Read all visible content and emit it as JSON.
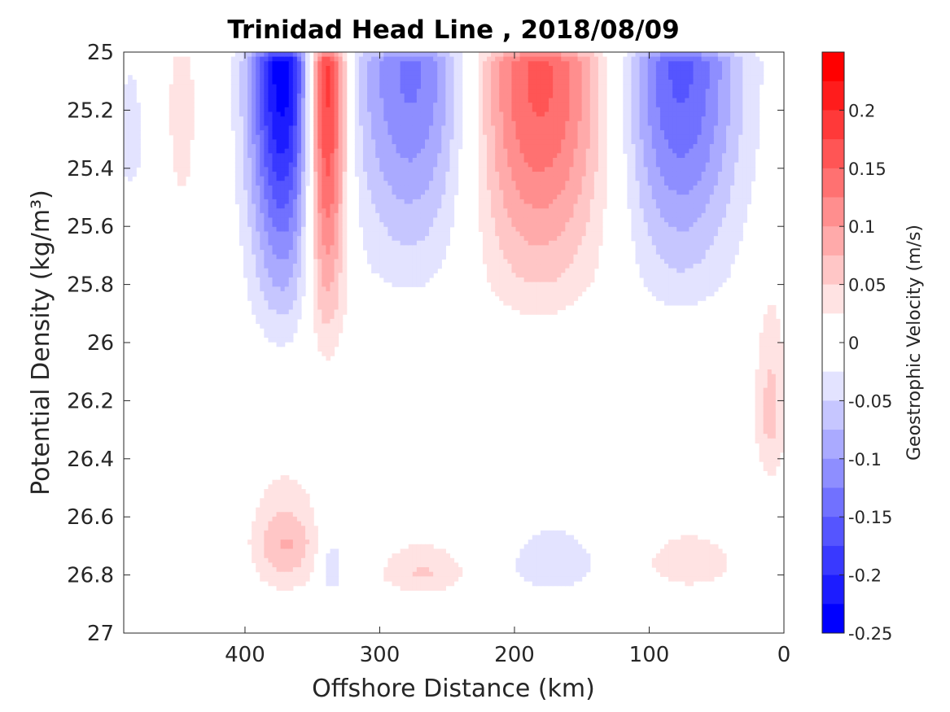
{
  "chart_data": {
    "type": "contour",
    "title": "Trinidad Head Line , 2018/08/09",
    "xlabel": "Offshore Distance (km)",
    "ylabel": "Potential Density (kg/m³)",
    "colorbar_label": "Geostrophic Velocity (m/s)",
    "x_reversed": true,
    "y_reversed": true,
    "xlim": [
      490,
      0
    ],
    "ylim": [
      25,
      27
    ],
    "x_ticks": [
      400,
      300,
      200,
      100,
      0
    ],
    "y_ticks": [
      25,
      25.2,
      25.4,
      25.6,
      25.8,
      26,
      26.2,
      26.4,
      26.6,
      26.8,
      27
    ],
    "colorbar_range": [
      -0.25,
      0.25
    ],
    "colorbar_step": 0.025,
    "colorbar_ticks": [
      0.2,
      0.15,
      0.1,
      0.05,
      0,
      -0.05,
      -0.1,
      -0.15,
      -0.2,
      -0.25
    ],
    "colors": {
      "negative_max": "#0000ff",
      "positive_max": "#ff0000",
      "zero": "#ffffff",
      "axis": "#262626"
    },
    "data_bottom": 26.9,
    "station_x": [
      480,
      470,
      460,
      450,
      440,
      430,
      420,
      410,
      400,
      390,
      380,
      370,
      360,
      350,
      340,
      330,
      320,
      310,
      300,
      290,
      280,
      270,
      260,
      250,
      240,
      230,
      220,
      210,
      200,
      190,
      180,
      170,
      160,
      150,
      140,
      130,
      120,
      110,
      100,
      90,
      80,
      70,
      60,
      50,
      40,
      30,
      20,
      10
    ],
    "features": [
      {
        "x": 485,
        "w": 10,
        "top": 25.0,
        "bot": 25.6,
        "amp": -0.04,
        "peak": 25.3
      },
      {
        "x": 447,
        "w": 12,
        "top": 25.0,
        "bot": 25.7,
        "amp": 0.04,
        "peak": 25.2
      },
      {
        "x": 372,
        "w": 25,
        "top": 25.0,
        "bot": 26.3,
        "amp": -0.24,
        "peak": 25.05
      },
      {
        "x": 340,
        "w": 15,
        "top": 25.0,
        "bot": 26.35,
        "amp": 0.24,
        "peak": 25.1
      },
      {
        "x": 273,
        "w": 48,
        "top": 25.0,
        "bot": 26.15,
        "amp": -0.14,
        "peak": 25.05
      },
      {
        "x": 183,
        "w": 55,
        "top": 25.0,
        "bot": 26.2,
        "amp": 0.16,
        "peak": 25.1
      },
      {
        "x": 78,
        "w": 45,
        "top": 25.0,
        "bot": 26.2,
        "amp": -0.16,
        "peak": 25.05
      },
      {
        "x": 10,
        "w": 12,
        "top": 25.7,
        "bot": 26.6,
        "amp": 0.06,
        "peak": 26.3
      },
      {
        "x": 370,
        "w": 25,
        "top": 26.3,
        "bot": 26.9,
        "amp": 0.1,
        "peak": 26.85
      },
      {
        "x": 268,
        "w": 35,
        "top": 26.6,
        "bot": 26.9,
        "amp": 0.06,
        "peak": 26.85
      },
      {
        "x": 171,
        "w": 35,
        "top": 26.5,
        "bot": 26.9,
        "amp": -0.06,
        "peak": 26.85
      },
      {
        "x": 70,
        "w": 40,
        "top": 26.5,
        "bot": 26.9,
        "amp": 0.05,
        "peak": 26.85
      },
      {
        "x": 336,
        "w": 9,
        "top": 26.5,
        "bot": 26.9,
        "amp": -0.08,
        "peak": 26.9
      }
    ]
  }
}
